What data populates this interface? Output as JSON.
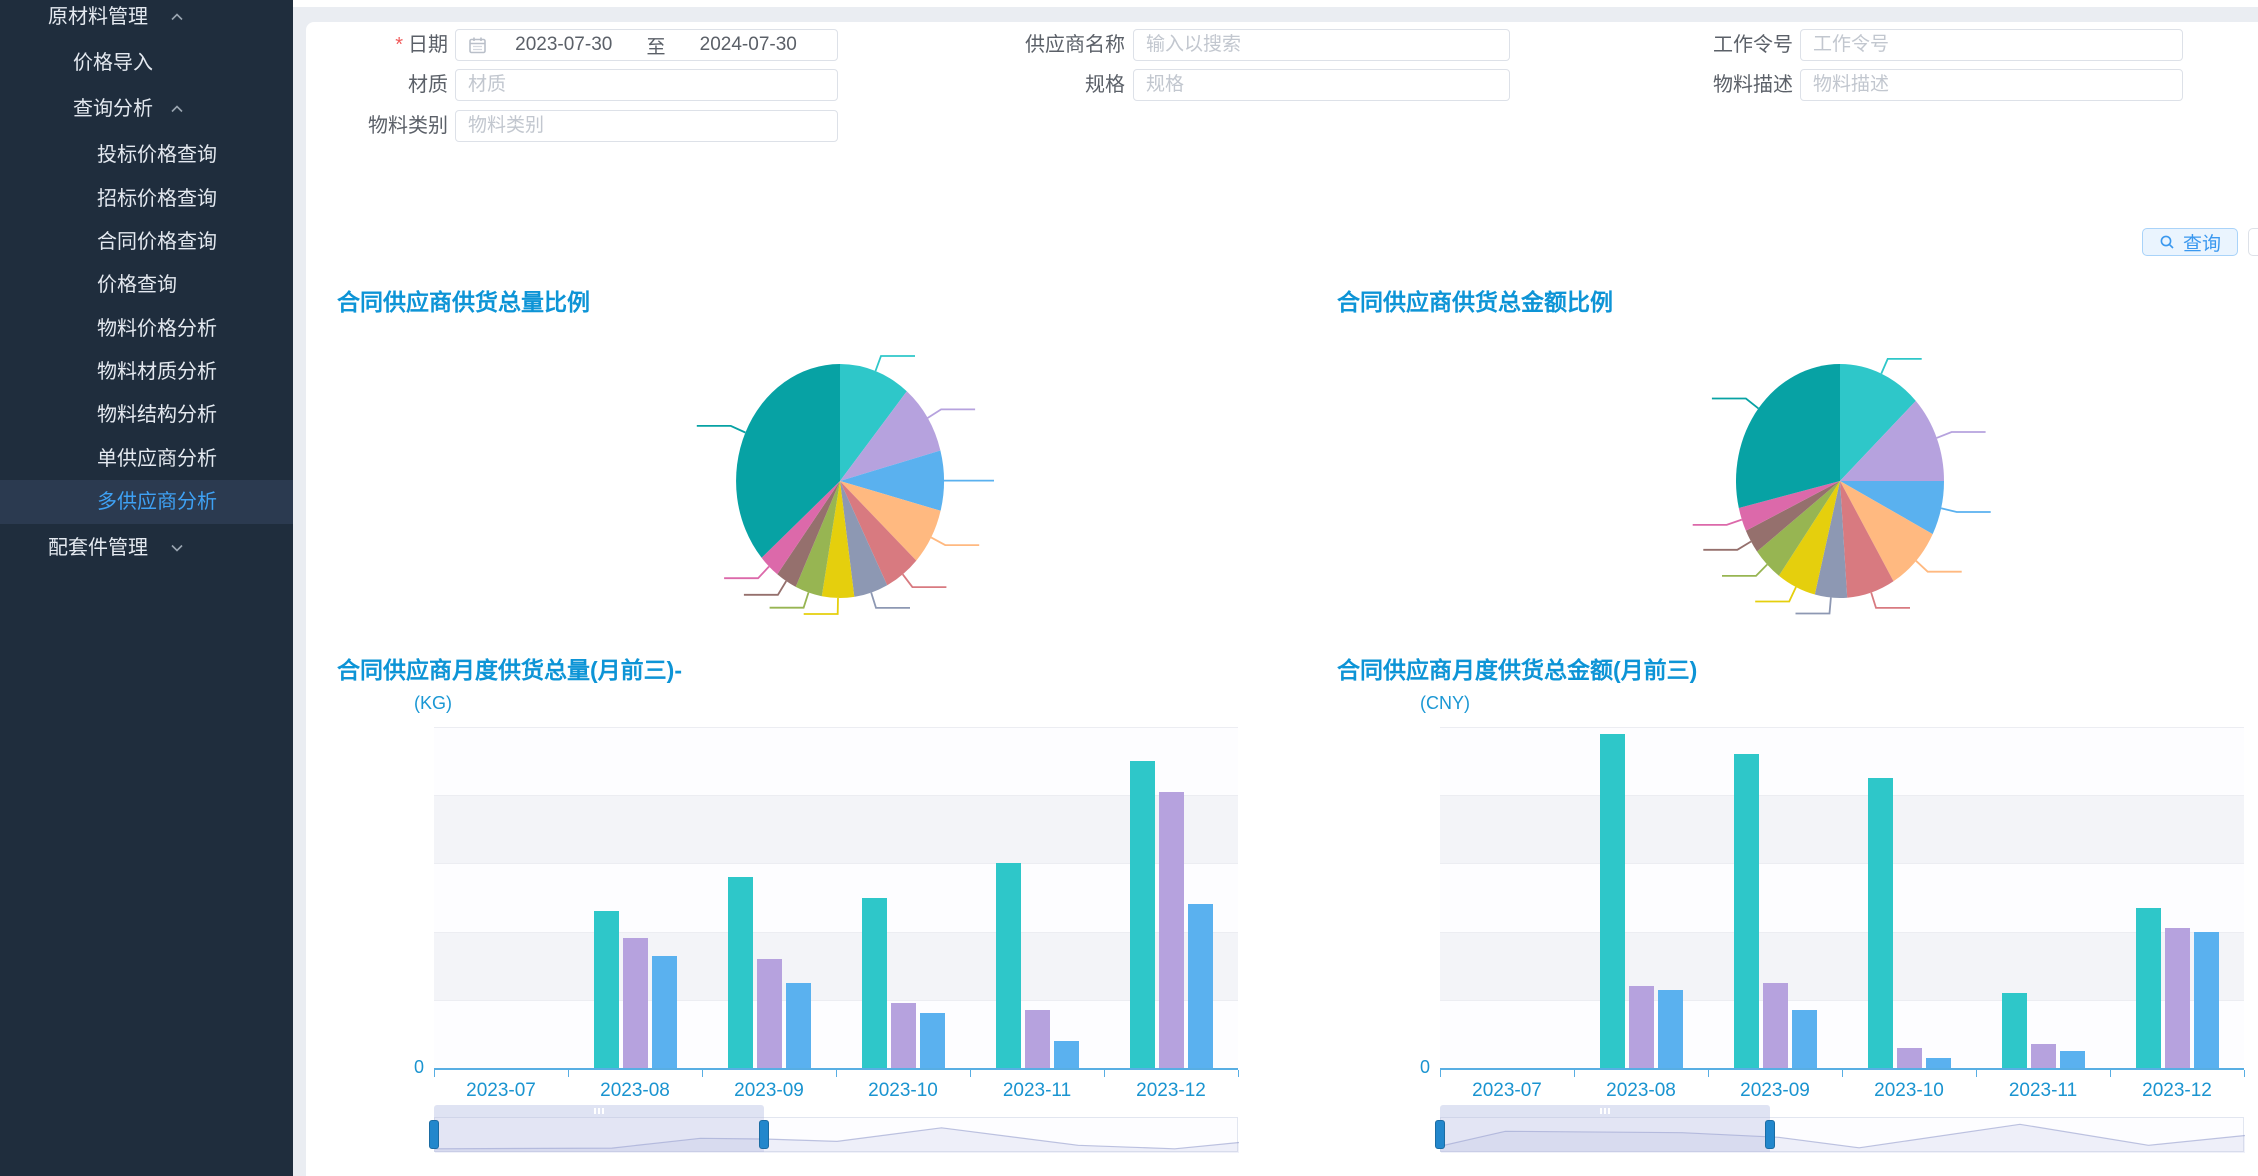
{
  "colors": {
    "sidebar_bg": "#1f2d3d",
    "sidebar_active_bg": "#2b3a50",
    "sidebar_active_text": "#3ea1f4",
    "sidebar_text": "#e4e9f0",
    "accent_blue": "#3a98ef",
    "title_blue": "#0d94d6",
    "axis_blue": "#1a94d0",
    "palette": [
      "#2ec7c9",
      "#b6a2de",
      "#5ab1ef",
      "#ffb980",
      "#d87a80",
      "#8d98b3",
      "#e5cf0d",
      "#97b552",
      "#95706d",
      "#dc69aa",
      "#07a2a4"
    ],
    "bar_series": [
      "#2ec7c9",
      "#b6a2de",
      "#5ab1ef"
    ],
    "datazoom_handle": "#2287cc"
  },
  "icons": {
    "date_field": "calendar-icon",
    "query_button": "search-icon",
    "menu_expanded": "chevron-up-icon",
    "menu_collapsed": "chevron-down-icon",
    "datazoom": "grip-icon"
  },
  "sidebar": {
    "items": [
      {
        "label": "原材料管理",
        "level": 1,
        "chevron": "up",
        "active": false
      },
      {
        "label": "价格导入",
        "level": 2,
        "chevron": "",
        "active": false
      },
      {
        "label": "查询分析",
        "level": 2,
        "chevron": "up",
        "active": false
      },
      {
        "label": "投标价格查询",
        "level": 3,
        "chevron": "",
        "active": false
      },
      {
        "label": "招标价格查询",
        "level": 3,
        "chevron": "",
        "active": false
      },
      {
        "label": "合同价格查询",
        "level": 3,
        "chevron": "",
        "active": false
      },
      {
        "label": "价格查询",
        "level": 3,
        "chevron": "",
        "active": false
      },
      {
        "label": "物料价格分析",
        "level": 3,
        "chevron": "",
        "active": false
      },
      {
        "label": "物料材质分析",
        "level": 3,
        "chevron": "",
        "active": false
      },
      {
        "label": "物料结构分析",
        "level": 3,
        "chevron": "",
        "active": false
      },
      {
        "label": "单供应商分析",
        "level": 3,
        "chevron": "",
        "active": false
      },
      {
        "label": "多供应商分析",
        "level": 3,
        "chevron": "",
        "active": true
      },
      {
        "label": "配套件管理",
        "level": 1,
        "chevron": "down",
        "active": false
      }
    ]
  },
  "form": {
    "date": {
      "required_mark": "*",
      "label": "日期",
      "start": "2023-07-30",
      "to": "至",
      "end": "2024-07-30"
    },
    "supplier": {
      "label": "供应商名称",
      "placeholder": "输入以搜索"
    },
    "work_order": {
      "label": "工作令号",
      "placeholder": "工作令号"
    },
    "material": {
      "label": "材质",
      "placeholder": "材质"
    },
    "spec": {
      "label": "规格",
      "placeholder": "规格"
    },
    "material_desc": {
      "label": "物料描述",
      "placeholder": "物料描述"
    },
    "material_category": {
      "label": "物料类别",
      "placeholder": "物料类别"
    }
  },
  "buttons": {
    "query": "查询"
  },
  "chart_data": [
    {
      "type": "pie",
      "title": "合同供应商供货总量比例",
      "values_pct": [
        11.1,
        9.7,
        8.3,
        7.8,
        5.6,
        5.3,
        5.0,
        4.2,
        3.3,
        3.3,
        36.4
      ],
      "legend": "hidden",
      "labels": "leader-lines-only"
    },
    {
      "type": "pie",
      "title": "合同供应商供货总金额比例",
      "values_pct": [
        13.0,
        12.0,
        7.5,
        8.9,
        7.5,
        5.0,
        6.1,
        4.7,
        3.3,
        3.3,
        28.7
      ],
      "legend": "hidden",
      "labels": "leader-lines-only"
    },
    {
      "type": "bar",
      "title": "合同供应商月度供货总量(月前三)-",
      "unit": "(KG)",
      "y_zero": "0",
      "ylim": [
        0,
        100
      ],
      "grid": "split-area-bands",
      "categories": [
        "2023-07",
        "2023-08",
        "2023-09",
        "2023-10",
        "2023-11",
        "2023-12"
      ],
      "series": [
        {
          "color": "#2ec7c9",
          "values": [
            0,
            46,
            56,
            50,
            60,
            90
          ]
        },
        {
          "color": "#b6a2de",
          "values": [
            0,
            38,
            32,
            19,
            17,
            81
          ]
        },
        {
          "color": "#5ab1ef",
          "values": [
            0,
            33,
            25,
            16,
            8,
            48
          ]
        }
      ],
      "datazoom": {
        "start_pct": 0,
        "end_pct": 41,
        "spark": [
          [
            0,
            0.12
          ],
          [
            0.22,
            0.14
          ],
          [
            0.33,
            0.42
          ],
          [
            0.41,
            0.4
          ],
          [
            0.5,
            0.33
          ],
          [
            0.63,
            0.72
          ],
          [
            0.8,
            0.22
          ],
          [
            0.92,
            0.12
          ],
          [
            1,
            0.3
          ]
        ]
      }
    },
    {
      "type": "bar",
      "title": "合同供应商月度供货总金额(月前三)",
      "unit": "(CNY)",
      "y_zero": "0",
      "ylim": [
        0,
        100
      ],
      "grid": "split-area-bands",
      "categories": [
        "2023-07",
        "2023-08",
        "2023-09",
        "2023-10",
        "2023-11",
        "2023-12"
      ],
      "series": [
        {
          "color": "#2ec7c9",
          "values": [
            0,
            98,
            92,
            85,
            22,
            47
          ]
        },
        {
          "color": "#b6a2de",
          "values": [
            0,
            24,
            25,
            6,
            7,
            41
          ]
        },
        {
          "color": "#5ab1ef",
          "values": [
            0,
            23,
            17,
            3,
            5,
            40
          ]
        }
      ],
      "datazoom": {
        "start_pct": 0,
        "end_pct": 41,
        "spark": [
          [
            0,
            0.2
          ],
          [
            0.08,
            0.62
          ],
          [
            0.3,
            0.58
          ],
          [
            0.42,
            0.45
          ],
          [
            0.52,
            0.15
          ],
          [
            0.72,
            0.82
          ],
          [
            0.88,
            0.22
          ],
          [
            1,
            0.5
          ]
        ]
      }
    }
  ]
}
